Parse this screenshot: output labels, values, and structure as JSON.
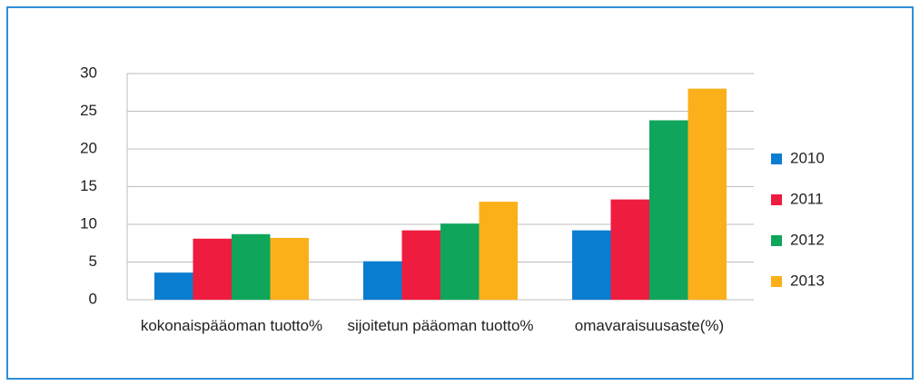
{
  "chart_data": {
    "type": "bar",
    "categories": [
      "kokonaispääoman tuotto%",
      "sijoitetun pääoman tuotto%",
      "omavaraisuusaste(%)"
    ],
    "series": [
      {
        "name": "2010",
        "color": "#0b7dd1",
        "values": [
          3.6,
          5.1,
          9.2
        ]
      },
      {
        "name": "2011",
        "color": "#ee1c3f",
        "values": [
          8.1,
          9.2,
          13.3
        ]
      },
      {
        "name": "2012",
        "color": "#0fa55b",
        "values": [
          8.7,
          10.1,
          23.8
        ]
      },
      {
        "name": "2013",
        "color": "#fbb01a",
        "values": [
          8.2,
          13.0,
          28.0
        ]
      }
    ],
    "ylim": [
      0,
      30
    ],
    "yticks": [
      0,
      5,
      10,
      15,
      20,
      25,
      30
    ],
    "grid": true,
    "legend": "right"
  }
}
